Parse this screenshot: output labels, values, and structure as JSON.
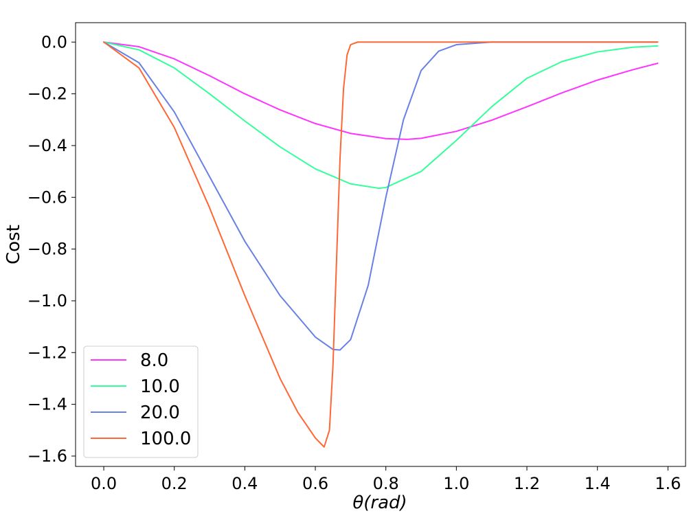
{
  "chart_data": {
    "type": "line",
    "title": "",
    "xlabel": "θ(rad)",
    "ylabel": "Cost",
    "xlim": [
      -0.08,
      1.65
    ],
    "ylim": [
      -1.64,
      0.075
    ],
    "xticks": [
      0.0,
      0.2,
      0.4,
      0.6,
      0.8,
      1.0,
      1.2,
      1.4,
      1.6
    ],
    "xtick_labels": [
      "0.0",
      "0.2",
      "0.4",
      "0.6",
      "0.8",
      "1.0",
      "1.2",
      "1.4",
      "1.6"
    ],
    "yticks": [
      0.0,
      -0.2,
      -0.4,
      -0.6,
      -0.8,
      -1.0,
      -1.2,
      -1.4,
      -1.6
    ],
    "ytick_labels": [
      "0.0",
      "−0.2",
      "−0.4",
      "−0.6",
      "−0.8",
      "−1.0",
      "−1.2",
      "−1.4",
      "−1.6"
    ],
    "grid": false,
    "legend_position": "lower-left",
    "series": [
      {
        "name": "8.0",
        "color": "#ff33ff",
        "x": [
          0.0,
          0.1,
          0.2,
          0.3,
          0.4,
          0.5,
          0.6,
          0.7,
          0.8,
          0.86,
          0.9,
          1.0,
          1.1,
          1.2,
          1.3,
          1.4,
          1.5,
          1.571
        ],
        "y": [
          0.0,
          -0.018,
          -0.065,
          -0.13,
          -0.2,
          -0.262,
          -0.315,
          -0.353,
          -0.373,
          -0.376,
          -0.372,
          -0.345,
          -0.302,
          -0.25,
          -0.196,
          -0.147,
          -0.107,
          -0.082
        ]
      },
      {
        "name": "10.0",
        "color": "#33ff99",
        "x": [
          0.0,
          0.1,
          0.2,
          0.3,
          0.4,
          0.5,
          0.6,
          0.7,
          0.78,
          0.8,
          0.9,
          1.0,
          1.1,
          1.2,
          1.3,
          1.4,
          1.5,
          1.571
        ],
        "y": [
          0.0,
          -0.03,
          -0.1,
          -0.2,
          -0.305,
          -0.405,
          -0.49,
          -0.548,
          -0.565,
          -0.562,
          -0.5,
          -0.38,
          -0.25,
          -0.14,
          -0.075,
          -0.038,
          -0.02,
          -0.015
        ]
      },
      {
        "name": "20.0",
        "color": "#6680e6",
        "x": [
          0.0,
          0.1,
          0.2,
          0.3,
          0.4,
          0.5,
          0.6,
          0.65,
          0.67,
          0.7,
          0.75,
          0.8,
          0.85,
          0.9,
          0.95,
          1.0,
          1.1,
          1.2,
          1.4,
          1.571
        ],
        "y": [
          0.0,
          -0.08,
          -0.27,
          -0.52,
          -0.77,
          -0.98,
          -1.14,
          -1.188,
          -1.19,
          -1.15,
          -0.94,
          -0.6,
          -0.3,
          -0.11,
          -0.035,
          -0.01,
          0.0,
          0.0,
          0.0,
          0.0
        ]
      },
      {
        "name": "100.0",
        "color": "#ff6633",
        "x": [
          0.0,
          0.1,
          0.2,
          0.3,
          0.4,
          0.5,
          0.55,
          0.6,
          0.625,
          0.64,
          0.65,
          0.66,
          0.67,
          0.68,
          0.69,
          0.7,
          0.72,
          0.75,
          0.8,
          1.0,
          1.2,
          1.4,
          1.571
        ],
        "y": [
          0.0,
          -0.1,
          -0.33,
          -0.64,
          -0.98,
          -1.3,
          -1.43,
          -1.53,
          -1.565,
          -1.5,
          -1.25,
          -0.85,
          -0.45,
          -0.18,
          -0.05,
          -0.01,
          0.0,
          0.0,
          0.0,
          0.0,
          0.0,
          0.0,
          0.0
        ]
      }
    ]
  }
}
